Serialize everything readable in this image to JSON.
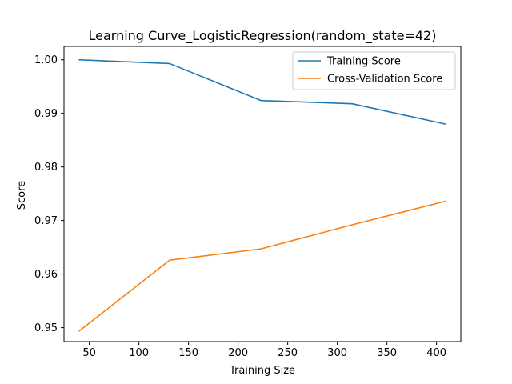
{
  "chart_data": {
    "type": "line",
    "title": "Learning Curve_LogisticRegression(random_state=42)",
    "xlabel": "Training Size",
    "ylabel": "Score",
    "x": [
      40,
      131,
      223,
      315,
      409
    ],
    "xlim": [
      24.5,
      424.5
    ],
    "ylim": [
      0.9474,
      1.0025
    ],
    "xticks": [
      50,
      100,
      150,
      200,
      250,
      300,
      350,
      400
    ],
    "yticks": [
      0.95,
      0.96,
      0.97,
      0.98,
      0.99,
      1.0
    ],
    "ytick_labels": [
      "0.95",
      "0.96",
      "0.97",
      "0.98",
      "0.99",
      "1.00"
    ],
    "grid": false,
    "legend_position": "top-right",
    "series": [
      {
        "name": "Training Score",
        "color": "#1f77b4",
        "values": [
          1.0,
          0.9993,
          0.9924,
          0.9918,
          0.988
        ]
      },
      {
        "name": "Cross-Validation Score",
        "color": "#ff7f0e",
        "values": [
          0.9494,
          0.9626,
          0.9647,
          0.9692,
          0.9736
        ]
      }
    ]
  }
}
